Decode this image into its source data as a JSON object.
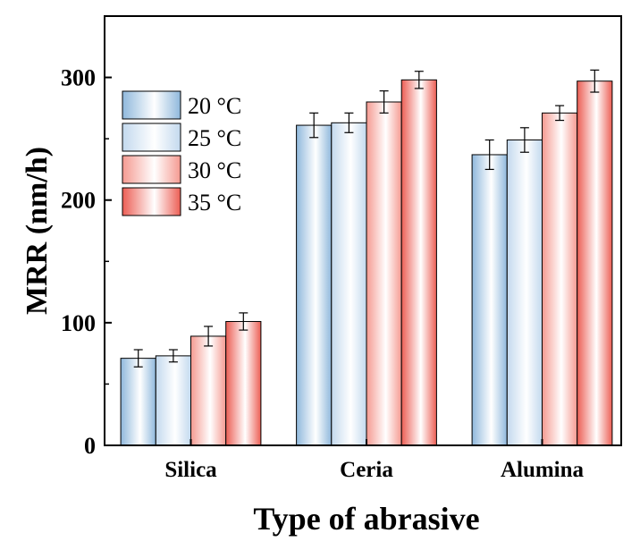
{
  "chart_data": {
    "type": "bar",
    "title": "",
    "xlabel": "Type of abrasive",
    "ylabel": "MRR (nm/h)",
    "categories": [
      "Silica",
      "Ceria",
      "Alumina"
    ],
    "ylim": [
      0,
      350
    ],
    "yticks": [
      0,
      100,
      200,
      300
    ],
    "legend_position": "top-left",
    "grid": false,
    "series": [
      {
        "name": "20 °C",
        "values": [
          71,
          261,
          237
        ],
        "errors": [
          7,
          10,
          12
        ],
        "fill": "gradient-blue",
        "color": "#9fc3e0"
      },
      {
        "name": "25 °C",
        "values": [
          73,
          263,
          249
        ],
        "errors": [
          5,
          8,
          10
        ],
        "fill": "gradient-lightblue",
        "color": "#c8ddef"
      },
      {
        "name": "30 °C",
        "values": [
          89,
          280,
          271
        ],
        "errors": [
          8,
          9,
          6
        ],
        "fill": "gradient-lightred",
        "color": "#f6a79f"
      },
      {
        "name": "35 °C",
        "values": [
          101,
          298,
          297
        ],
        "errors": [
          7,
          7,
          9
        ],
        "fill": "gradient-red",
        "color": "#ef6c62"
      }
    ]
  }
}
